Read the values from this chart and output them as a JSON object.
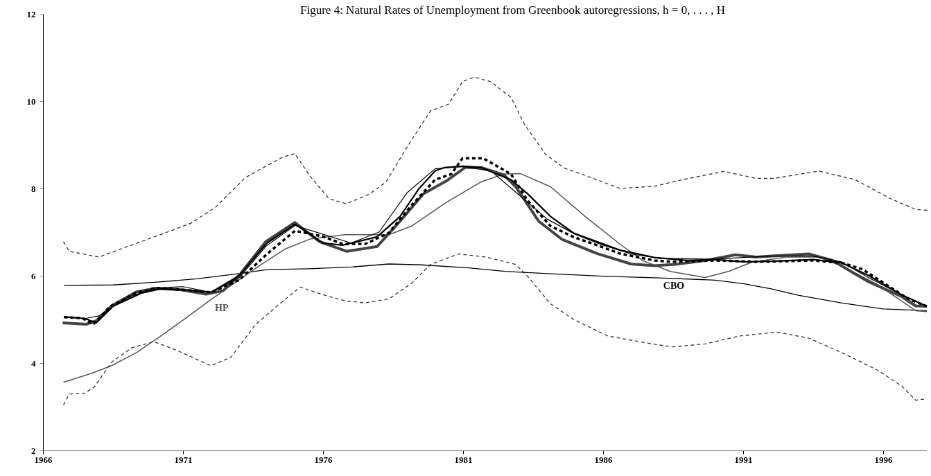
{
  "chart_data": {
    "type": "line",
    "title": "Figure 4: Natural Rates of Unemployment from Greenbook autoregressions, h = 0, . . . , H",
    "xlim": [
      1966,
      1997.56
    ],
    "xticks": [
      1966,
      1971,
      1976,
      1981,
      1986,
      1991,
      1996
    ],
    "ylim": [
      2,
      12
    ],
    "yticks": [
      2,
      4,
      6,
      8,
      10,
      12
    ],
    "series": [
      {
        "color": "#333333",
        "line_style": "dashed",
        "x": [
          1966.73,
          1966.94,
          1968.0,
          1968.72,
          1970.23,
          1971.27,
          1972.16,
          1973.23,
          1973.85,
          1974.56,
          1974.99,
          1975.53,
          1976.22,
          1976.84,
          1977.68,
          1978.25,
          1978.99,
          1979.84,
          1980.48,
          1980.98,
          1981.4,
          1981.97,
          1982.71,
          1983.2,
          1983.95,
          1984.61,
          1985.78,
          1986.59,
          1987.83,
          1988.82,
          1990.31,
          1991.47,
          1992.11,
          1993.7,
          1995.01,
          1996.25,
          1997.16,
          1997.56
        ],
        "values": [
          6.78,
          6.56,
          6.43,
          6.6,
          6.95,
          7.2,
          7.57,
          8.25,
          8.47,
          8.72,
          8.8,
          8.29,
          7.76,
          7.65,
          7.88,
          8.15,
          8.94,
          9.78,
          9.93,
          10.45,
          10.55,
          10.45,
          10.09,
          9.46,
          8.78,
          8.47,
          8.2,
          8.0,
          8.05,
          8.2,
          8.39,
          8.23,
          8.23,
          8.4,
          8.2,
          7.77,
          7.52,
          7.5
        ]
      },
      {
        "color": "#333333",
        "line_style": "dashed",
        "x": [
          1966.73,
          1966.94,
          1967.49,
          1967.83,
          1968.45,
          1969.17,
          1969.96,
          1970.75,
          1971.99,
          1972.71,
          1973.57,
          1974.29,
          1975.18,
          1976.22,
          1976.84,
          1977.51,
          1978.35,
          1979.17,
          1979.84,
          1980.83,
          1981.82,
          1982.88,
          1983.3,
          1984.12,
          1984.94,
          1986.17,
          1987.83,
          1988.5,
          1989.64,
          1990.88,
          1992.21,
          1993.35,
          1994.59,
          1995.82,
          1996.67,
          1997.16,
          1997.56
        ],
        "values": [
          3.04,
          3.29,
          3.31,
          3.45,
          4.02,
          4.35,
          4.49,
          4.3,
          3.94,
          4.13,
          4.87,
          5.27,
          5.74,
          5.52,
          5.42,
          5.38,
          5.47,
          5.83,
          6.26,
          6.5,
          6.43,
          6.26,
          5.99,
          5.36,
          5.0,
          4.62,
          4.43,
          4.37,
          4.44,
          4.62,
          4.71,
          4.57,
          4.22,
          3.83,
          3.47,
          3.15,
          3.18
        ]
      },
      {
        "name": "CBO",
        "color": "#000000",
        "line_style": "solid",
        "x": [
          1966.75,
          1968.5,
          1970,
          1971.5,
          1973,
          1974,
          1975.5,
          1977,
          1978.35,
          1979.5,
          1981.2,
          1982.5,
          1984,
          1986,
          1988,
          1990,
          1991,
          1992,
          1993,
          1994.5,
          1996,
          1997.56
        ],
        "values": [
          5.78,
          5.79,
          5.85,
          5.93,
          6.05,
          6.14,
          6.16,
          6.2,
          6.27,
          6.25,
          6.18,
          6.1,
          6.05,
          5.99,
          5.95,
          5.9,
          5.82,
          5.7,
          5.55,
          5.38,
          5.24,
          5.2
        ]
      },
      {
        "name": "HP",
        "color": "#555555",
        "line_style": "solid",
        "x": [
          1966.73,
          1967.76,
          1968.45,
          1969.34,
          1970.23,
          1971.1,
          1971.99,
          1972.88,
          1973.75,
          1974.64,
          1975.53,
          1976.77,
          1978.35,
          1979.17,
          1980.4,
          1981.64,
          1982.46,
          1983.05,
          1984.12,
          1985.36,
          1986.59,
          1987.41,
          1988.4,
          1989.64,
          1990.48,
          1991.3,
          1992.54,
          1993.7,
          1994.59,
          1995.82,
          1997.16,
          1997.56
        ],
        "values": [
          3.56,
          3.77,
          3.94,
          4.24,
          4.63,
          5.03,
          5.45,
          5.85,
          6.24,
          6.61,
          6.84,
          6.94,
          6.94,
          7.14,
          7.68,
          8.15,
          8.33,
          8.34,
          8.04,
          7.36,
          6.73,
          6.35,
          6.1,
          5.96,
          6.1,
          6.31,
          6.43,
          6.43,
          6.2,
          5.79,
          5.2,
          5.18
        ]
      },
      {
        "color": "#444444",
        "line_style": "solid",
        "x": [
          1966.7,
          1967.56,
          1967.93,
          1968.45,
          1969.34,
          1970.03,
          1970.93,
          1971.82,
          1972.44,
          1973.06,
          1973.95,
          1974.99,
          1975.88,
          1976.84,
          1977.93,
          1978.75,
          1979.59,
          1980.4,
          1981.07,
          1981.64,
          1982.46,
          1982.88,
          1983.7,
          1984.54,
          1985.78,
          1987.0,
          1987.83,
          1988.57,
          1989.64,
          1990.73,
          1991.47,
          1992.21,
          1993.35,
          1994.19,
          1995.43,
          1996.67,
          1997.16,
          1997.56
        ],
        "values": [
          4.92,
          4.89,
          4.98,
          5.31,
          5.63,
          5.71,
          5.68,
          5.58,
          5.66,
          6.05,
          6.78,
          7.22,
          6.78,
          6.56,
          6.67,
          7.25,
          7.88,
          8.17,
          8.48,
          8.48,
          8.31,
          8.04,
          7.25,
          6.83,
          6.51,
          6.27,
          6.23,
          6.26,
          6.35,
          6.48,
          6.43,
          6.46,
          6.5,
          6.35,
          5.88,
          5.52,
          5.31,
          5.3
        ]
      },
      {
        "color": "#000000",
        "line_style": "dashed",
        "x": [
          1966.75,
          1967.4,
          1967.8,
          1968.4,
          1969.3,
          1970,
          1971,
          1972,
          1973,
          1974,
          1975,
          1976,
          1976.7,
          1977.51,
          1978.35,
          1979.17,
          1980,
          1980.58,
          1980.98,
          1981.72,
          1982.71,
          1983.3,
          1984.12,
          1984.94,
          1985.78,
          1986.59,
          1987.83,
          1988.5,
          1990,
          1991.5,
          1993.5,
          1994.5,
          1995.26,
          1996.9,
          1997.56
        ],
        "values": [
          5.05,
          5.03,
          4.89,
          5.3,
          5.6,
          5.72,
          5.68,
          5.62,
          5.9,
          6.5,
          7.03,
          6.9,
          6.73,
          6.73,
          6.98,
          7.62,
          8.2,
          8.33,
          8.69,
          8.69,
          8.33,
          7.73,
          7.14,
          6.89,
          6.7,
          6.51,
          6.35,
          6.32,
          6.35,
          6.32,
          6.35,
          6.3,
          6.15,
          5.47,
          5.3
        ]
      },
      {
        "color": "#000000",
        "line_style": "solid",
        "x": [
          1966.75,
          1967.5,
          1967.9,
          1968.5,
          1969.5,
          1970.2,
          1971,
          1972,
          1973,
          1974,
          1975,
          1976,
          1976.7,
          1977.93,
          1978.75,
          1979.42,
          1980,
          1980.33,
          1981,
          1981.64,
          1982.71,
          1983.3,
          1984.12,
          1984.94,
          1985.78,
          1986.59,
          1987.83,
          1989,
          1990,
          1991,
          1992,
          1993.5,
          1994.5,
          1995.5,
          1996.7,
          1997.56
        ],
        "values": [
          5.06,
          5.02,
          4.92,
          5.3,
          5.6,
          5.7,
          5.68,
          5.62,
          6.0,
          6.75,
          7.18,
          6.75,
          6.7,
          6.89,
          7.36,
          7.99,
          8.4,
          8.48,
          8.51,
          8.48,
          8.2,
          7.88,
          7.36,
          6.98,
          6.78,
          6.59,
          6.42,
          6.35,
          6.37,
          6.32,
          6.33,
          6.37,
          6.3,
          6.0,
          5.55,
          5.3
        ]
      },
      {
        "color": "#000000",
        "line_style": "solid",
        "x": [
          1966.75,
          1967.5,
          1968,
          1969,
          1970,
          1971,
          1972,
          1973,
          1974,
          1975,
          1976,
          1977,
          1978,
          1979,
          1980,
          1981,
          1982,
          1983,
          1984,
          1985,
          1986,
          1987,
          1988,
          1990,
          1991,
          1992,
          1993.5,
          1994.5,
          1995.5,
          1996.7,
          1997.56
        ],
        "values": [
          5.05,
          5.02,
          5.08,
          5.5,
          5.72,
          5.75,
          5.62,
          5.95,
          6.7,
          7.15,
          6.95,
          6.75,
          7.0,
          7.9,
          8.45,
          8.5,
          8.4,
          7.85,
          7.3,
          6.95,
          6.7,
          6.5,
          6.4,
          6.38,
          6.42,
          6.45,
          6.45,
          6.32,
          5.95,
          5.55,
          5.3
        ]
      }
    ]
  }
}
